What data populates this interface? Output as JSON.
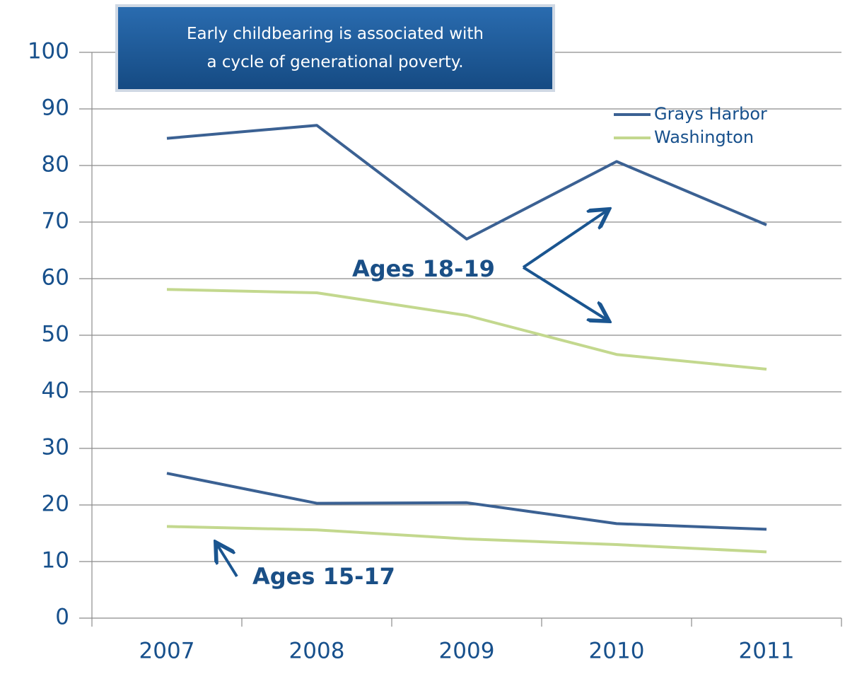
{
  "chart_data": {
    "type": "line",
    "annotation": "Early childbearing is associated with a cycle of generational poverty.",
    "categories": [
      "2007",
      "2008",
      "2009",
      "2010",
      "2011"
    ],
    "groups": [
      {
        "label": "Ages 18-19",
        "series": [
          {
            "name": "Grays Harbor",
            "color": "#3b6193",
            "values": [
              84.8,
              87.1,
              67,
              80.7,
              69.5
            ]
          },
          {
            "name": "Washington",
            "color": "#c3d88e",
            "values": [
              58.1,
              57.5,
              53.5,
              46.6,
              44
            ]
          }
        ]
      },
      {
        "label": "Ages 15-17",
        "series": [
          {
            "color": "#3b6193",
            "values": [
              25.6,
              20.3,
              20.4,
              16.7,
              15.7
            ]
          },
          {
            "color": "#c3d88e",
            "values": [
              16.2,
              15.6,
              14,
              13,
              11.7
            ]
          }
        ]
      }
    ],
    "ylim": [
      0,
      100
    ],
    "yticks": [
      0,
      10,
      20,
      30,
      40,
      50,
      60,
      70,
      80,
      90,
      100
    ],
    "grid": true
  }
}
